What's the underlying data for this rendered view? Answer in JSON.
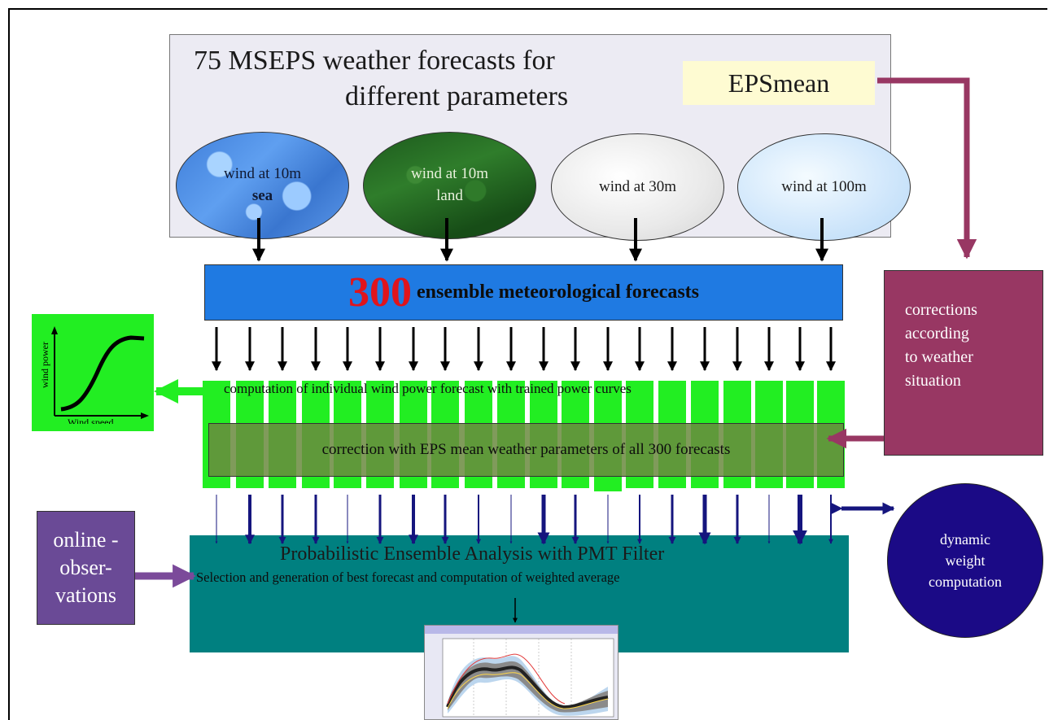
{
  "header": {
    "title_line1": "75 MSEPS weather forecasts for",
    "title_line2": "different parameters",
    "epsmean": "EPSmean"
  },
  "ellipses": {
    "sea_line1": "wind at 10m",
    "sea_line2": "sea",
    "land_line1": "wind at 10m",
    "land_line2": "land",
    "w30": "wind at 30m",
    "w100": "wind at 100m"
  },
  "ensemble": {
    "number": "300",
    "text": "ensemble meteorological forecasts"
  },
  "corrections_box": [
    "corrections",
    "according",
    "to weather",
    "situation"
  ],
  "power_curve": {
    "xlabel": "Wind speed",
    "ylabel": "wind power"
  },
  "computation_text": "computation of individual wind power forecast with trained power curves",
  "correction_text": "correction with EPS mean weather parameters of all 300 forecasts",
  "analysis": {
    "title": "Probabilistic Ensemble Analysis  with PMT Filter",
    "subtitle": "Selection and generation of best forecast and computation of weighted average"
  },
  "online_box": [
    "online -",
    "obser-",
    "vations"
  ],
  "dynamic_box": [
    "dynamic",
    "weight",
    "computation"
  ],
  "colors": {
    "blue_bar": "#1f7ae2",
    "red_300": "#e0141c",
    "maroon": "#983763",
    "green": "#22ee22",
    "teal": "#008080",
    "purple": "#6a4a96",
    "navy": "#1b0a86"
  }
}
